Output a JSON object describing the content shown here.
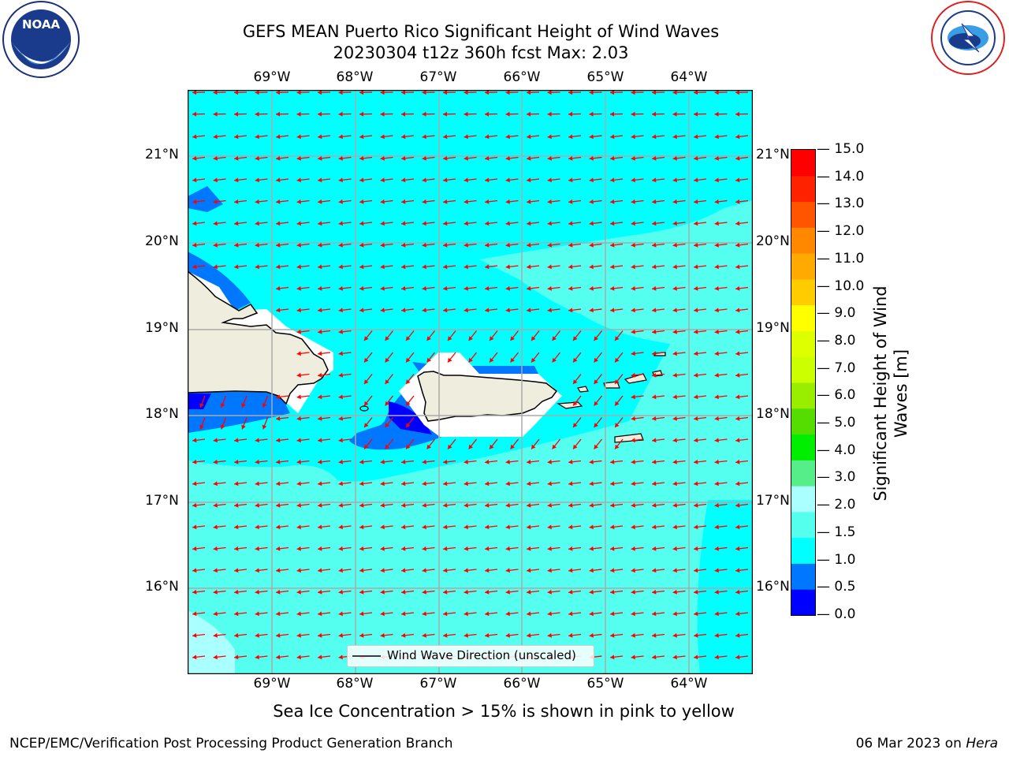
{
  "header": {
    "title_line1": "GEFS MEAN Puerto Rico Significant Height of Wind Waves",
    "title_line2": "20230304 t12z 360h fcst   Max: 2.03"
  },
  "logos": {
    "left": {
      "text": "NOAA",
      "ring_text": "NATIONAL OCEANIC AND ATMOSPHERIC ADMINISTRATION · U.S. DEPARTMENT OF COMMERCE"
    },
    "right": {
      "ring_text": "NATIONAL WEATHER SERVICE"
    }
  },
  "map": {
    "lon_labels": [
      "69°W",
      "68°W",
      "67°W",
      "66°W",
      "65°W",
      "64°W"
    ],
    "lat_labels": [
      "21°N",
      "20°N",
      "19°N",
      "18°N",
      "17°N",
      "16°N"
    ],
    "legend_label": "Wind Wave Direction (unscaled)",
    "arrow_color": "#ff0000",
    "land_color": "#efedde"
  },
  "colorbar": {
    "label": "Significant Height of Wind Waves [m]",
    "ticks": [
      "15.0",
      "14.0",
      "13.0",
      "12.0",
      "11.0",
      "10.0",
      "9.0",
      "8.0",
      "7.0",
      "6.0",
      "5.0",
      "4.0",
      "3.0",
      "2.0",
      "1.5",
      "1.0",
      "0.5",
      "0.0"
    ],
    "colors_bottom_to_top": [
      "#0000ff",
      "#0077ff",
      "#00ffff",
      "#55ffee",
      "#aaffff",
      "#55ee88",
      "#00ee00",
      "#55dd00",
      "#99ee00",
      "#ccff00",
      "#ddff00",
      "#ffff00",
      "#ffcc00",
      "#ffaa00",
      "#ff8800",
      "#ff5500",
      "#ff2200",
      "#ff0000"
    ]
  },
  "footer": {
    "ice_note": "Sea Ice Concentration > 15% is shown in pink to yellow",
    "left": "NCEP/EMC/Verification Post Processing Product Generation Branch",
    "right_date": "06 Mar 2023 on ",
    "right_machine": "Hera"
  }
}
